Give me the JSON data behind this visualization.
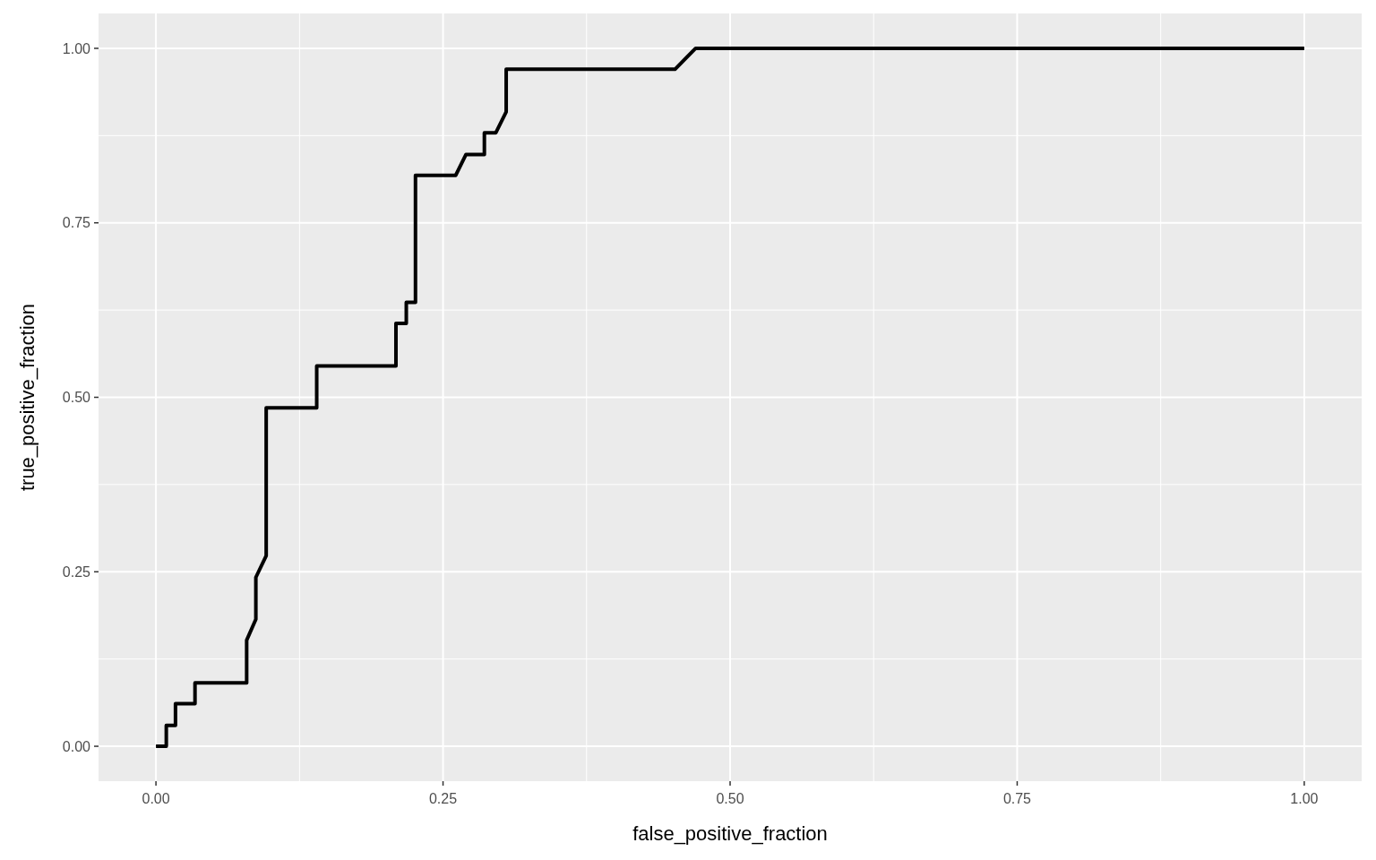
{
  "chart_data": {
    "type": "line",
    "xlabel": "false_positive_fraction",
    "ylabel": "true_positive_fraction",
    "xlim": [
      -0.05,
      1.05
    ],
    "ylim": [
      -0.05,
      1.05
    ],
    "xticks": [
      {
        "value": 0,
        "label": "0.00"
      },
      {
        "value": 0.25,
        "label": "0.25"
      },
      {
        "value": 0.5,
        "label": "0.50"
      },
      {
        "value": 0.75,
        "label": "0.75"
      },
      {
        "value": 1,
        "label": "1.00"
      }
    ],
    "yticks": [
      {
        "value": 0,
        "label": "0.00"
      },
      {
        "value": 0.25,
        "label": "0.25"
      },
      {
        "value": 0.5,
        "label": "0.50"
      },
      {
        "value": 0.75,
        "label": "0.75"
      },
      {
        "value": 1,
        "label": "1.00"
      }
    ],
    "grid": true,
    "marker": "none",
    "line_style": "solid",
    "series": [
      {
        "color": "#000000",
        "x": [
          0,
          0.009,
          0.009,
          0.017,
          0.017,
          0.034,
          0.034,
          0.079,
          0.079,
          0.087,
          0.087,
          0.096,
          0.096,
          0.14,
          0.14,
          0.209,
          0.209,
          0.218,
          0.218,
          0.226,
          0.226,
          0.261,
          0.27,
          0.286,
          0.286,
          0.296,
          0.305,
          0.305,
          0.452,
          0.47,
          1
        ],
        "values": [
          0,
          0,
          0.03,
          0.03,
          0.061,
          0.061,
          0.091,
          0.091,
          0.152,
          0.182,
          0.242,
          0.273,
          0.485,
          0.485,
          0.545,
          0.545,
          0.606,
          0.606,
          0.636,
          0.636,
          0.818,
          0.818,
          0.848,
          0.848,
          0.879,
          0.879,
          0.909,
          0.97,
          0.97,
          1,
          1
        ]
      }
    ]
  }
}
